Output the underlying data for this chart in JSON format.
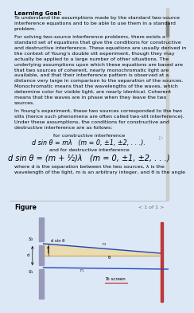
{
  "bg_color": "#dce8f5",
  "fig_panel_color": "#eef4f8",
  "text_lines": [
    {
      "text": "Learning Goal:",
      "fontsize": 5.2,
      "bold": true,
      "indent": 0.03
    },
    {
      "text": "To understand the assumptions made by the standard two-source",
      "fontsize": 4.5,
      "bold": false,
      "indent": 0.03
    },
    {
      "text": "interference equations and to be able to use them in a standard",
      "fontsize": 4.5,
      "bold": false,
      "indent": 0.03
    },
    {
      "text": "problem.",
      "fontsize": 4.5,
      "bold": false,
      "indent": 0.03
    },
    {
      "text": " ",
      "fontsize": 3.0,
      "bold": false,
      "indent": 0.03
    },
    {
      "text": "For solving two-source interference problems, there exists a",
      "fontsize": 4.5,
      "bold": false,
      "indent": 0.03
    },
    {
      "text": "standard set of equations that give the conditions for constructive",
      "fontsize": 4.5,
      "bold": false,
      "indent": 0.03
    },
    {
      "text": "and destructive interference. These equations are usually derived in",
      "fontsize": 4.5,
      "bold": false,
      "indent": 0.03
    },
    {
      "text": "the context of Young’s double slit experiment, though they may",
      "fontsize": 4.5,
      "bold": false,
      "indent": 0.03
    },
    {
      "text": "actually be applied to a large number of other situations. The",
      "fontsize": 4.5,
      "bold": false,
      "indent": 0.03
    },
    {
      "text": "underlying assumptions upon which these equations are based are",
      "fontsize": 4.5,
      "bold": false,
      "indent": 0.03
    },
    {
      "text": "that two sources of coherent, nearly monochromatic light are",
      "fontsize": 4.5,
      "bold": false,
      "indent": 0.03
    },
    {
      "text": "available, and that their interference pattern is observed at a",
      "fontsize": 4.5,
      "bold": false,
      "indent": 0.03
    },
    {
      "text": "distance very large in comparison to the separation of the sources.",
      "fontsize": 4.5,
      "bold": false,
      "indent": 0.03
    },
    {
      "text": "Monochromatic means that the wavelengths of the waves, which",
      "fontsize": 4.5,
      "bold": false,
      "indent": 0.03
    },
    {
      "text": "determine color for visible light, are nearly identical. Coherent",
      "fontsize": 4.5,
      "bold": false,
      "indent": 0.03
    },
    {
      "text": "means that the waves are in phase when they leave the two",
      "fontsize": 4.5,
      "bold": false,
      "indent": 0.03
    },
    {
      "text": "sources.",
      "fontsize": 4.5,
      "bold": false,
      "indent": 0.03
    },
    {
      "text": " ",
      "fontsize": 3.0,
      "bold": false,
      "indent": 0.03
    },
    {
      "text": "In Young’s experiment, these two sources corresponded to the two",
      "fontsize": 4.5,
      "bold": false,
      "indent": 0.03
    },
    {
      "text": "slits (hence such phenomena are often called two-slit interference).",
      "fontsize": 4.5,
      "bold": false,
      "indent": 0.03
    },
    {
      "text": "Under these assumptions, the conditions for constructive and",
      "fontsize": 4.5,
      "bold": false,
      "indent": 0.03
    },
    {
      "text": "destructive interference are as follows:",
      "fontsize": 4.5,
      "bold": false,
      "indent": 0.03
    },
    {
      "text": " ",
      "fontsize": 3.0,
      "bold": false,
      "indent": 0.03
    },
    {
      "text": "for constructive interference",
      "fontsize": 4.5,
      "bold": false,
      "indent": 0.5,
      "center": true
    },
    {
      "text": "d sin θ = mλ   (m = 0, ±1, ±2, . . .).",
      "fontsize": 5.8,
      "bold": false,
      "indent": 0.5,
      "center": true,
      "italic": true
    },
    {
      "text": " ",
      "fontsize": 3.0,
      "bold": false,
      "indent": 0.03
    },
    {
      "text": "and for destructive interference",
      "fontsize": 4.5,
      "bold": false,
      "indent": 0.5,
      "center": true
    },
    {
      "text": "d sin θ = (m + ½)λ   (m = 0, ±1, ±2, . . .)",
      "fontsize": 7.0,
      "bold": false,
      "indent": 0.5,
      "center": true,
      "italic": true
    },
    {
      "text": " ",
      "fontsize": 3.0,
      "bold": false,
      "indent": 0.03
    },
    {
      "text": "where d is the separation between the two sources, λ is the",
      "fontsize": 4.5,
      "bold": false,
      "indent": 0.03
    },
    {
      "text": "wavelength of the light, m is an arbitrary integer, and θ is the angle",
      "fontsize": 4.5,
      "bold": false,
      "indent": 0.03
    }
  ],
  "figure_label": "Figure",
  "figure_nav": "< 1 of 1 >",
  "slit_color": "#9898b8",
  "line_blue": "#2244bb",
  "line_tan": "#c8a050",
  "shading_color": "#f0d898",
  "screen_color": "#bb2222",
  "label_color": "#333333",
  "diagram_bg": "#f0f4f0"
}
